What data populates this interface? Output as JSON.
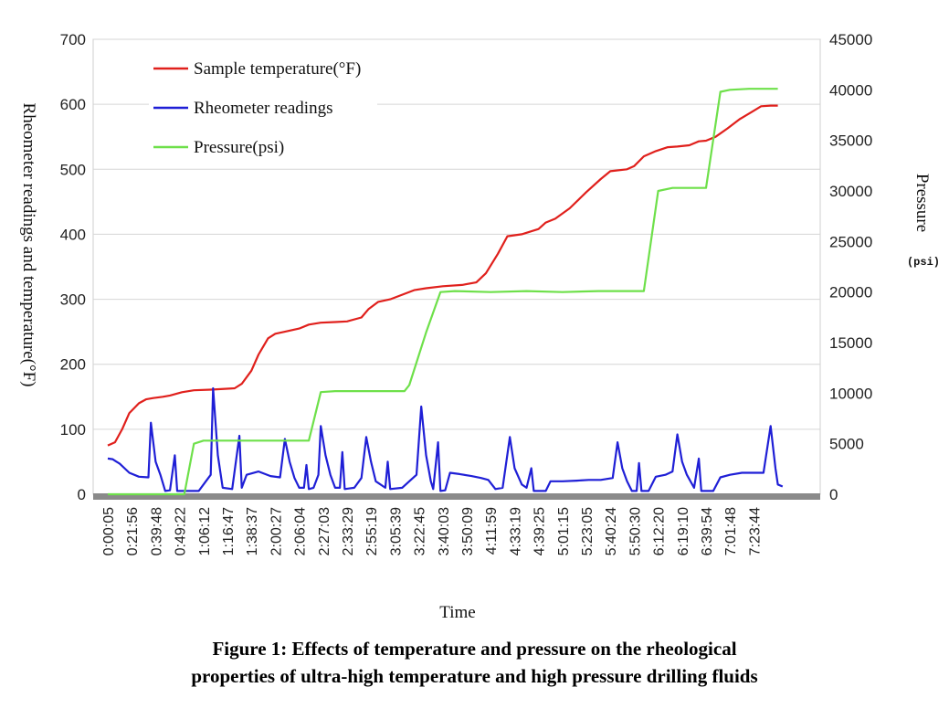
{
  "chart_data": {
    "type": "line",
    "title": "",
    "xlabel": "Time",
    "ylabel_left": "Rheometer readings and temperature(°F)",
    "ylabel_right": "Pressure",
    "ylabel_right_unit": "(psi)",
    "ylim_left": [
      0,
      700
    ],
    "ylim_right": [
      0,
      45000
    ],
    "yticks_left": [
      0,
      100,
      200,
      300,
      400,
      500,
      600,
      700
    ],
    "yticks_right": [
      0,
      5000,
      10000,
      15000,
      20000,
      25000,
      30000,
      35000,
      40000,
      45000
    ],
    "yticks_right_labels": [
      "0",
      "5000",
      "10000",
      "15000",
      "20000",
      "25000",
      "30000",
      "35000",
      "40000",
      "45000"
    ],
    "x_tick_labels": [
      "0:00:05",
      "0:21:56",
      "0:39:48",
      "0:49:22",
      "1:06:12",
      "1:16:47",
      "1:38:37",
      "2:00:27",
      "2:06:04",
      "2:27:03",
      "2:33:29",
      "2:55:19",
      "3:05:39",
      "3:22:45",
      "3:40:03",
      "3:50:09",
      "4:11:59",
      "4:33:19",
      "4:39:25",
      "5:01:15",
      "5:23:05",
      "5:40:24",
      "5:50:30",
      "6:12:20",
      "6:19:10",
      "6:39:54",
      "7:01:48",
      "7:23:44"
    ],
    "grid": true,
    "legend_position": "top-left",
    "series": [
      {
        "name": "Sample temperature(°F)",
        "axis": "left",
        "color": "#e0201c",
        "points": [
          [
            0,
            75
          ],
          [
            0.3,
            80
          ],
          [
            0.6,
            100
          ],
          [
            0.9,
            125
          ],
          [
            1.3,
            140
          ],
          [
            1.6,
            146
          ],
          [
            1.9,
            148
          ],
          [
            2.3,
            150
          ],
          [
            2.6,
            152
          ],
          [
            3.1,
            157
          ],
          [
            3.6,
            160
          ],
          [
            4.3,
            161
          ],
          [
            5.3,
            163
          ],
          [
            5.6,
            170
          ],
          [
            6.0,
            190
          ],
          [
            6.3,
            215
          ],
          [
            6.7,
            240
          ],
          [
            7.0,
            247
          ],
          [
            7.4,
            250
          ],
          [
            8.0,
            255
          ],
          [
            8.4,
            261
          ],
          [
            8.9,
            264
          ],
          [
            9.5,
            265
          ],
          [
            10.0,
            266
          ],
          [
            10.6,
            272
          ],
          [
            10.9,
            285
          ],
          [
            11.3,
            296
          ],
          [
            11.8,
            300
          ],
          [
            12.3,
            307
          ],
          [
            12.8,
            314
          ],
          [
            13.3,
            317
          ],
          [
            14.0,
            320
          ],
          [
            14.8,
            322
          ],
          [
            15.4,
            326
          ],
          [
            15.8,
            340
          ],
          [
            16.3,
            370
          ],
          [
            16.7,
            397
          ],
          [
            17.3,
            400
          ],
          [
            18.0,
            408
          ],
          [
            18.3,
            418
          ],
          [
            18.7,
            424
          ],
          [
            19.3,
            440
          ],
          [
            20.0,
            465
          ],
          [
            20.6,
            485
          ],
          [
            21.0,
            497
          ],
          [
            21.7,
            500
          ],
          [
            22.0,
            505
          ],
          [
            22.4,
            520
          ],
          [
            22.9,
            528
          ],
          [
            23.4,
            534
          ],
          [
            23.8,
            535
          ],
          [
            24.3,
            537
          ],
          [
            24.7,
            543
          ],
          [
            25.0,
            544
          ],
          [
            25.4,
            550
          ],
          [
            25.9,
            563
          ],
          [
            26.4,
            577
          ],
          [
            26.9,
            588
          ],
          [
            27.3,
            597
          ],
          [
            27.7,
            598
          ],
          [
            28.0,
            598
          ]
        ]
      },
      {
        "name": "Rheometer readings",
        "axis": "left",
        "color": "#1f1fd6",
        "points": [
          [
            0,
            55
          ],
          [
            0.2,
            54
          ],
          [
            0.5,
            47
          ],
          [
            0.9,
            33
          ],
          [
            1.3,
            27
          ],
          [
            1.7,
            26
          ],
          [
            1.8,
            110
          ],
          [
            2.0,
            50
          ],
          [
            2.2,
            30
          ],
          [
            2.4,
            5
          ],
          [
            2.6,
            6
          ],
          [
            2.8,
            60
          ],
          [
            2.9,
            5
          ],
          [
            3.3,
            5
          ],
          [
            3.8,
            5
          ],
          [
            4.1,
            20
          ],
          [
            4.3,
            30
          ],
          [
            4.4,
            163
          ],
          [
            4.6,
            60
          ],
          [
            4.8,
            10
          ],
          [
            5.2,
            8
          ],
          [
            5.5,
            90
          ],
          [
            5.6,
            10
          ],
          [
            5.8,
            30
          ],
          [
            6.3,
            35
          ],
          [
            6.8,
            28
          ],
          [
            7.2,
            26
          ],
          [
            7.4,
            85
          ],
          [
            7.6,
            50
          ],
          [
            7.8,
            25
          ],
          [
            8.0,
            10
          ],
          [
            8.2,
            10
          ],
          [
            8.3,
            45
          ],
          [
            8.4,
            8
          ],
          [
            8.6,
            10
          ],
          [
            8.8,
            30
          ],
          [
            8.9,
            105
          ],
          [
            9.1,
            60
          ],
          [
            9.3,
            30
          ],
          [
            9.5,
            10
          ],
          [
            9.7,
            10
          ],
          [
            9.8,
            65
          ],
          [
            9.9,
            8
          ],
          [
            10.3,
            10
          ],
          [
            10.6,
            25
          ],
          [
            10.8,
            88
          ],
          [
            11.0,
            50
          ],
          [
            11.2,
            20
          ],
          [
            11.6,
            10
          ],
          [
            11.7,
            50
          ],
          [
            11.8,
            8
          ],
          [
            12.3,
            10
          ],
          [
            12.6,
            20
          ],
          [
            12.9,
            30
          ],
          [
            13.1,
            135
          ],
          [
            13.3,
            60
          ],
          [
            13.5,
            20
          ],
          [
            13.6,
            8
          ],
          [
            13.8,
            80
          ],
          [
            13.9,
            5
          ],
          [
            14.1,
            6
          ],
          [
            14.3,
            33
          ],
          [
            14.7,
            31
          ],
          [
            15.2,
            28
          ],
          [
            15.6,
            25
          ],
          [
            15.9,
            22
          ],
          [
            16.2,
            8
          ],
          [
            16.5,
            10
          ],
          [
            16.8,
            88
          ],
          [
            17.0,
            40
          ],
          [
            17.3,
            15
          ],
          [
            17.5,
            10
          ],
          [
            17.7,
            40
          ],
          [
            17.8,
            5
          ],
          [
            18.3,
            5
          ],
          [
            18.5,
            20
          ],
          [
            19.0,
            20
          ],
          [
            19.6,
            21
          ],
          [
            20.1,
            22
          ],
          [
            20.6,
            22
          ],
          [
            21.1,
            25
          ],
          [
            21.3,
            80
          ],
          [
            21.5,
            40
          ],
          [
            21.7,
            20
          ],
          [
            21.9,
            5
          ],
          [
            22.1,
            5
          ],
          [
            22.2,
            48
          ],
          [
            22.3,
            5
          ],
          [
            22.6,
            5
          ],
          [
            22.9,
            27
          ],
          [
            23.3,
            30
          ],
          [
            23.6,
            35
          ],
          [
            23.8,
            92
          ],
          [
            24.0,
            50
          ],
          [
            24.2,
            30
          ],
          [
            24.5,
            10
          ],
          [
            24.7,
            55
          ],
          [
            24.8,
            5
          ],
          [
            25.3,
            5
          ],
          [
            25.6,
            26
          ],
          [
            26.0,
            30
          ],
          [
            26.5,
            33
          ],
          [
            27.0,
            33
          ],
          [
            27.4,
            33
          ],
          [
            27.7,
            105
          ],
          [
            27.9,
            40
          ],
          [
            28.0,
            15
          ],
          [
            28.2,
            12
          ]
        ]
      },
      {
        "name": "Pressure(psi)",
        "axis": "right",
        "color": "#6ee04a",
        "points": [
          [
            0,
            0
          ],
          [
            2.9,
            0
          ],
          [
            3.2,
            0
          ],
          [
            3.6,
            5000
          ],
          [
            4.0,
            5300
          ],
          [
            5.0,
            5300
          ],
          [
            6.5,
            5300
          ],
          [
            8.0,
            5300
          ],
          [
            8.4,
            5300
          ],
          [
            8.9,
            10100
          ],
          [
            9.5,
            10200
          ],
          [
            10.5,
            10200
          ],
          [
            11.5,
            10200
          ],
          [
            12.4,
            10200
          ],
          [
            12.6,
            10800
          ],
          [
            13.3,
            16000
          ],
          [
            13.9,
            20000
          ],
          [
            14.5,
            20100
          ],
          [
            16.0,
            20000
          ],
          [
            17.5,
            20100
          ],
          [
            19.0,
            20000
          ],
          [
            20.5,
            20100
          ],
          [
            22.0,
            20100
          ],
          [
            22.4,
            20100
          ],
          [
            23.0,
            30000
          ],
          [
            23.6,
            30300
          ],
          [
            24.5,
            30300
          ],
          [
            25.0,
            30300
          ],
          [
            25.6,
            39800
          ],
          [
            26.0,
            40000
          ],
          [
            26.8,
            40100
          ],
          [
            27.6,
            40100
          ],
          [
            28.0,
            40100
          ]
        ]
      }
    ]
  },
  "caption": {
    "line1": "Figure 1: Effects of temperature and pressure on the rheological",
    "line2": "properties of ultra-high temperature and high pressure drilling fluids"
  }
}
